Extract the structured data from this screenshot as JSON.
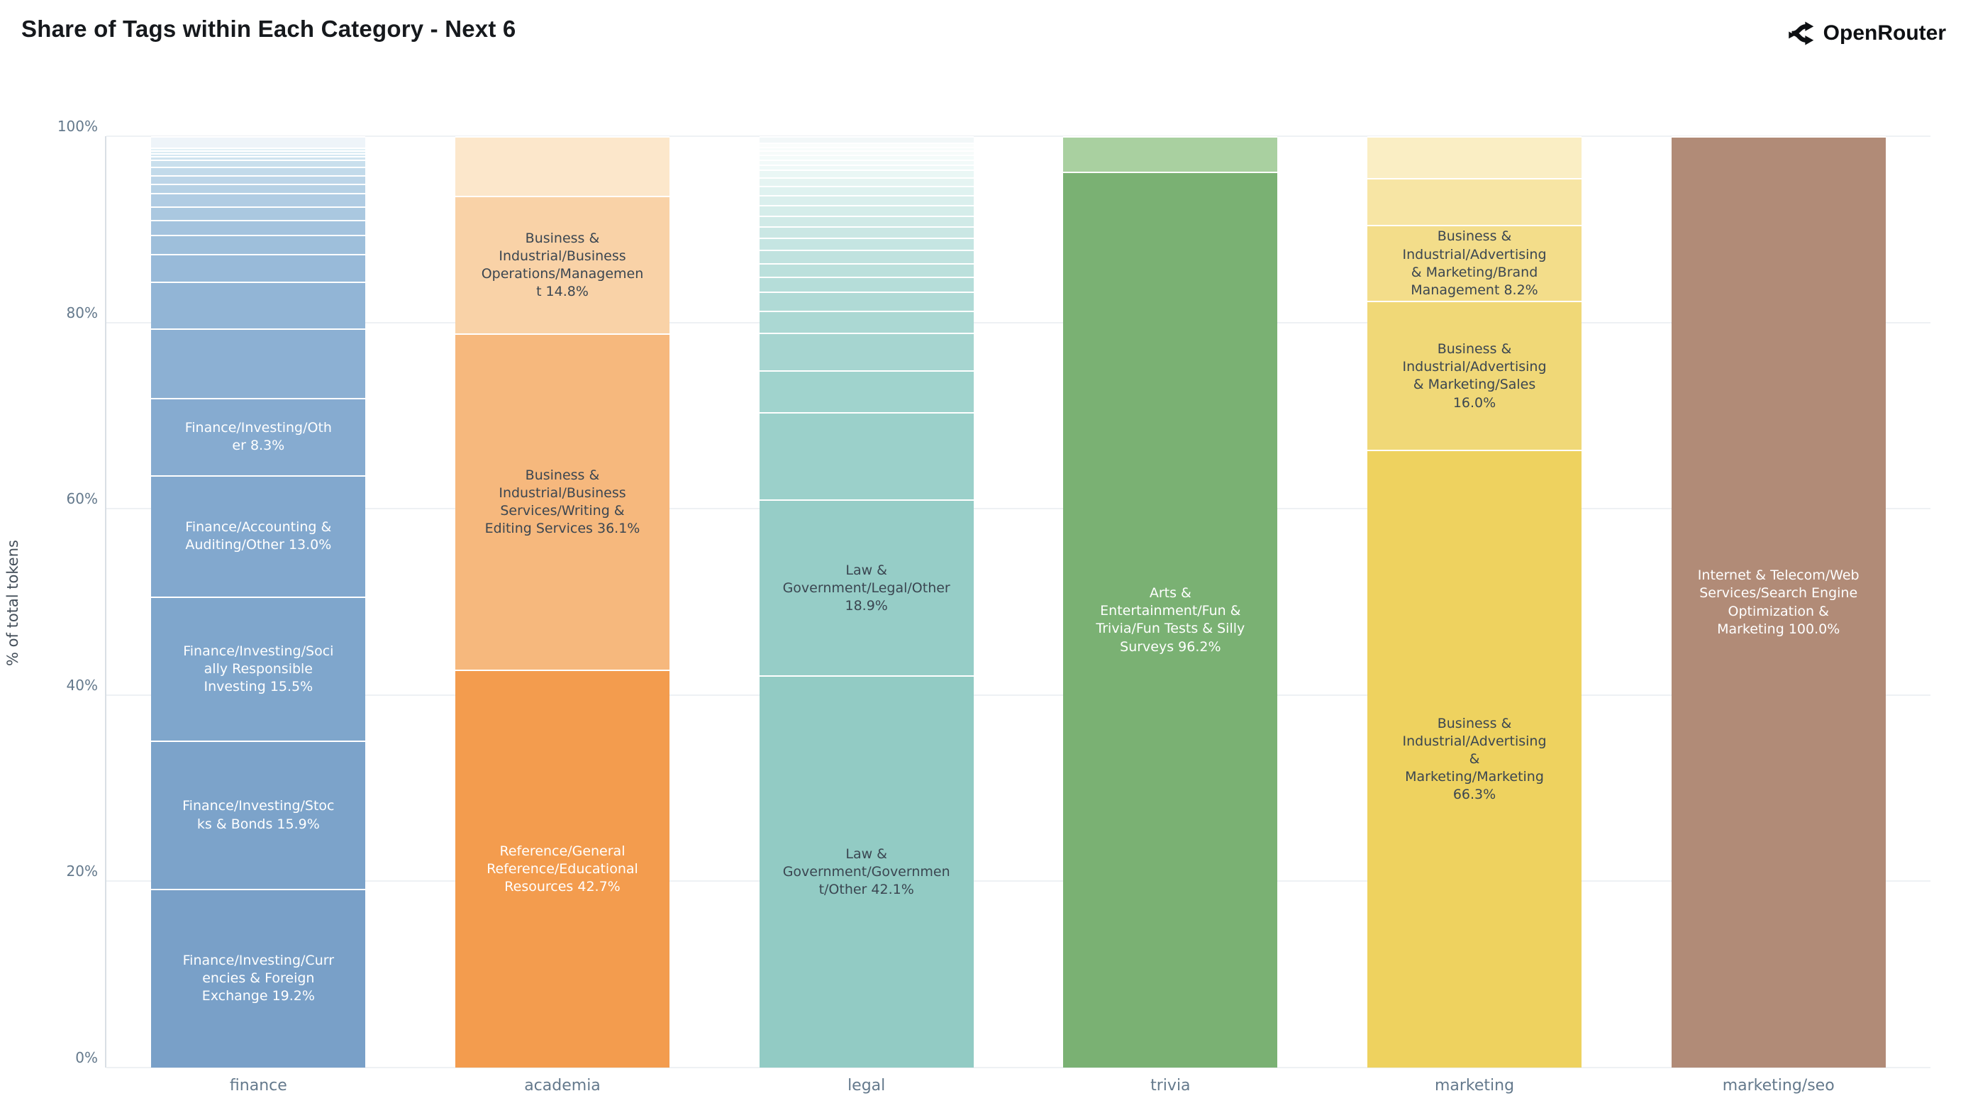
{
  "header": {
    "title": "Share of Tags within Each Category - Next 6",
    "brand": "OpenRouter"
  },
  "y_axis": {
    "title": "% of total tokens",
    "ticks": [
      {
        "label": "0%",
        "value": 0
      },
      {
        "label": "20%",
        "value": 20
      },
      {
        "label": "40%",
        "value": 40
      },
      {
        "label": "60%",
        "value": 60
      },
      {
        "label": "80%",
        "value": 80
      },
      {
        "label": "100%",
        "value": 100
      }
    ]
  },
  "colors": {
    "label_dark": "#3b4651",
    "label_light": "#ffffff",
    "grid": "#eef1f4",
    "axis_text": "#64798c"
  },
  "chart_data": {
    "type": "bar",
    "stacked": true,
    "title": "Share of Tags within Each Category - Next 6",
    "xlabel": "",
    "ylabel": "% of total tokens",
    "ylim": [
      0,
      100
    ],
    "grid": "horizontal",
    "legend": "none",
    "categories": [
      "finance",
      "academia",
      "legal",
      "trivia",
      "marketing",
      "marketing/seo"
    ],
    "note": "segments listed bottom-to-top; unlabeled minor segments estimated from pixel heights",
    "bars": [
      {
        "category": "finance",
        "segments": [
          {
            "display": "Finance/Investing/Currencies & Foreign Exchange 19.2%",
            "value": 19.2,
            "color": "#79a0c8",
            "text_color": "#ffffff",
            "label_width": 215
          },
          {
            "display": "Finance/Investing/Stocks & Bonds 15.9%",
            "value": 15.9,
            "color": "#7ca3ca",
            "text_color": "#ffffff",
            "label_width": 215
          },
          {
            "display": "Finance/Investing/Socially Responsible Investing 15.5%",
            "value": 15.5,
            "color": "#7fa6cc",
            "text_color": "#ffffff",
            "label_width": 215
          },
          {
            "display": "Finance/Accounting & Auditing/Other 13.0%",
            "value": 13.0,
            "color": "#82a8ce",
            "text_color": "#ffffff",
            "label_width": 215
          },
          {
            "display": "Finance/Investing/Other 8.3%",
            "value": 8.3,
            "color": "#86abd0",
            "text_color": "#ffffff",
            "label_width": 215
          },
          {
            "display": "",
            "value": 7.5,
            "color": "#8cb0d3"
          },
          {
            "display": "",
            "value": 5.0,
            "color": "#92b5d6"
          },
          {
            "display": "",
            "value": 3.0,
            "color": "#98bad9"
          },
          {
            "display": "",
            "value": 2.0,
            "color": "#9ebfdb"
          },
          {
            "display": "",
            "value": 1.6,
            "color": "#a4c3de"
          },
          {
            "display": "",
            "value": 1.5,
            "color": "#aac8e0"
          },
          {
            "display": "",
            "value": 1.4,
            "color": "#b0cce3"
          },
          {
            "display": "",
            "value": 1.0,
            "color": "#b6d1e5"
          },
          {
            "display": "",
            "value": 0.9,
            "color": "#bcd5e8"
          },
          {
            "display": "",
            "value": 0.9,
            "color": "#c2daea"
          },
          {
            "display": "",
            "value": 0.8,
            "color": "#c9dfed"
          },
          {
            "display": "",
            "value": 0.4,
            "color": "#cfe3ef"
          },
          {
            "display": "",
            "value": 0.3,
            "color": "#d5e8f2"
          },
          {
            "display": "",
            "value": 0.3,
            "color": "#dbecf4"
          },
          {
            "display": "",
            "value": 0.3,
            "color": "#e2f0f6"
          },
          {
            "display": "",
            "value": 1.2,
            "color": "#eef4f9"
          }
        ]
      },
      {
        "category": "academia",
        "segments": [
          {
            "display": "Reference/General Reference/Educational Resources 42.7%",
            "value": 42.7,
            "color": "#f39c4e",
            "text_color": "#ffffff",
            "label_width": 235
          },
          {
            "display": "Business & Industrial/Business Services/Writing & Editing Services 36.1%",
            "value": 36.1,
            "color": "#f6b87d",
            "text_color": "#3b4651",
            "label_width": 235
          },
          {
            "display": "Business & Industrial/Business Operations/Management 14.8%",
            "value": 14.8,
            "color": "#f9d2a7",
            "text_color": "#3b4651",
            "label_width": 235
          },
          {
            "display": "",
            "value": 6.4,
            "color": "#fce7cb"
          }
        ]
      },
      {
        "category": "legal",
        "segments": [
          {
            "display": "Law & Government/Government/Other 42.1%",
            "value": 42.1,
            "color": "#92cbc4",
            "text_color": "#3b4651",
            "label_width": 240
          },
          {
            "display": "Law & Government/Legal/Other 18.9%",
            "value": 18.9,
            "color": "#96cdc7",
            "text_color": "#3b4651",
            "label_width": 240
          },
          {
            "display": "",
            "value": 9.4,
            "color": "#9bd0ca"
          },
          {
            "display": "",
            "value": 4.5,
            "color": "#a0d3cd"
          },
          {
            "display": "",
            "value": 4.0,
            "color": "#a6d5d0"
          },
          {
            "display": "",
            "value": 2.4,
            "color": "#abd8d3"
          },
          {
            "display": "",
            "value": 2.0,
            "color": "#b0dad6"
          },
          {
            "display": "",
            "value": 1.6,
            "color": "#b5ddd9"
          },
          {
            "display": "",
            "value": 1.5,
            "color": "#bbe0dc"
          },
          {
            "display": "",
            "value": 1.4,
            "color": "#c0e2df"
          },
          {
            "display": "",
            "value": 1.3,
            "color": "#c5e5e2"
          },
          {
            "display": "",
            "value": 1.2,
            "color": "#cae7e4"
          },
          {
            "display": "",
            "value": 1.2,
            "color": "#d0eae7"
          },
          {
            "display": "",
            "value": 1.1,
            "color": "#d5edea"
          },
          {
            "display": "",
            "value": 1.1,
            "color": "#daefed"
          },
          {
            "display": "",
            "value": 1.0,
            "color": "#dff2f0"
          },
          {
            "display": "",
            "value": 0.9,
            "color": "#e5f4f2"
          },
          {
            "display": "",
            "value": 0.8,
            "color": "#eaf7f5"
          },
          {
            "display": "",
            "value": 0.6,
            "color": "#eff9f8"
          },
          {
            "display": "",
            "value": 0.5,
            "color": "#f2faf9"
          },
          {
            "display": "",
            "value": 0.5,
            "color": "#f4fbfa"
          },
          {
            "display": "",
            "value": 0.5,
            "color": "#f6fbfa"
          },
          {
            "display": "",
            "value": 0.4,
            "color": "#f8fcfb"
          },
          {
            "display": "",
            "value": 0.4,
            "color": "#fafdfc"
          },
          {
            "display": "",
            "value": 0.7,
            "color": "#f2f7f8"
          }
        ]
      },
      {
        "category": "trivia",
        "segments": [
          {
            "display": "Arts & Entertainment/Fun & Trivia/Fun Tests & Silly Surveys 96.2%",
            "value": 96.2,
            "color": "#7ab173",
            "text_color": "#ffffff",
            "label_width": 225
          },
          {
            "display": "",
            "value": 3.8,
            "color": "#a9d0a0"
          }
        ]
      },
      {
        "category": "marketing",
        "segments": [
          {
            "display": "Business & Industrial/Advertising & Marketing/Marketing 66.3%",
            "value": 66.3,
            "color": "#eed25f",
            "text_color": "#3b4651",
            "label_width": 215
          },
          {
            "display": "Business & Industrial/Advertising & Marketing/Sales 16.0%",
            "value": 16.0,
            "color": "#f0d877",
            "text_color": "#3b4651",
            "label_width": 215
          },
          {
            "display": "Business & Industrial/Advertising & Marketing/Brand Management 8.2%",
            "value": 8.2,
            "color": "#f3dd8a",
            "text_color": "#3b4651",
            "label_width": 215
          },
          {
            "display": "",
            "value": 5.0,
            "color": "#f7e5a4"
          },
          {
            "display": "",
            "value": 4.5,
            "color": "#faeec4"
          }
        ]
      },
      {
        "category": "marketing/seo",
        "segments": [
          {
            "display": "Internet & Telecom/Web Services/Search Engine Optimization & Marketing 100.0%",
            "value": 100.0,
            "color": "#b18b77",
            "text_color": "#ffffff",
            "label_width": 230
          }
        ]
      }
    ]
  }
}
